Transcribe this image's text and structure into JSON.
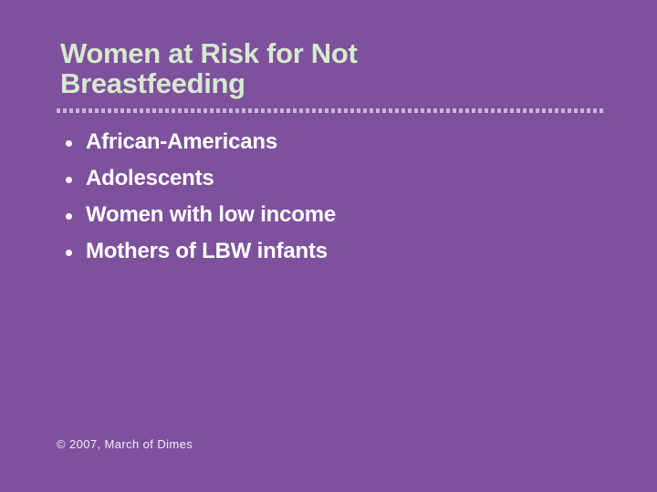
{
  "slide": {
    "title": {
      "line1": "Women at Risk for Not",
      "line2": "Breastfeeding"
    },
    "bullets": [
      "African-Americans",
      "Adolescents",
      "Women with low income",
      "Mothers of LBW infants"
    ],
    "footer": "© 2007, March of Dimes",
    "colors": {
      "background": "#7e519d",
      "title_text": "#d6eacf",
      "dotted_rule": "#c7b6da",
      "bullet_text": "#ffffff"
    }
  }
}
